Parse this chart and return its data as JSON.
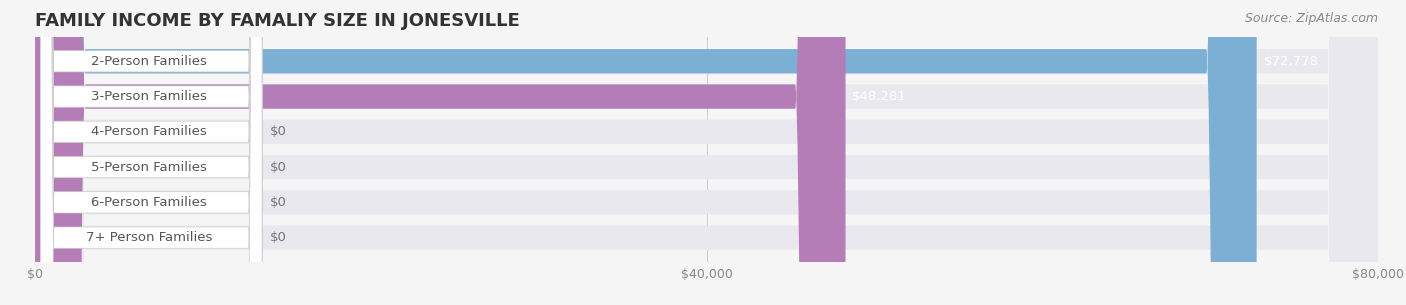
{
  "title": "FAMILY INCOME BY FAMALIY SIZE IN JONESVILLE",
  "source": "Source: ZipAtlas.com",
  "categories": [
    "2-Person Families",
    "3-Person Families",
    "4-Person Families",
    "5-Person Families",
    "6-Person Families",
    "7+ Person Families"
  ],
  "values": [
    72778,
    48281,
    0,
    0,
    0,
    0
  ],
  "bar_colors": [
    "#7bafd4",
    "#b47db8",
    "#5ec4b0",
    "#a99fd4",
    "#f4919b",
    "#f7c98a"
  ],
  "label_colors": [
    "#ffffff",
    "#ffffff",
    "#555555",
    "#555555",
    "#555555",
    "#555555"
  ],
  "xlim": [
    0,
    80000
  ],
  "xticks": [
    0,
    40000,
    80000
  ],
  "xticklabels": [
    "$0",
    "$40,000",
    "$80,000"
  ],
  "bg_color": "#f5f5f5",
  "bar_bg_color": "#e8e8ee",
  "title_fontsize": 13,
  "label_fontsize": 9.5,
  "value_fontsize": 9.5,
  "source_fontsize": 9
}
